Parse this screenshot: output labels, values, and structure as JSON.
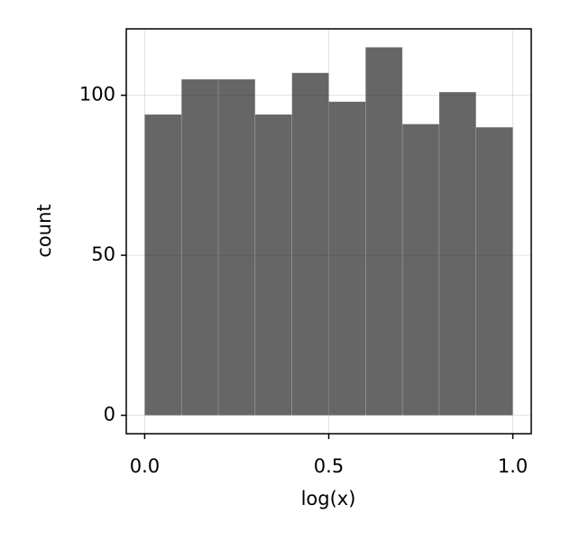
{
  "chart_data": {
    "type": "histogram",
    "xlabel": "log(x)",
    "ylabel": "count",
    "bins": [
      0.0,
      0.1,
      0.2,
      0.3,
      0.4,
      0.5,
      0.6,
      0.7,
      0.8,
      0.9,
      1.0
    ],
    "values": [
      94,
      105,
      105,
      94,
      107,
      98,
      115,
      91,
      101,
      90
    ],
    "color": "rgba(0,0,0,0.6)",
    "xlim": [
      -0.05,
      1.05
    ],
    "ylim": [
      -5.75,
      120.75
    ],
    "xticks": [
      {
        "value": 0,
        "label": "0.0"
      },
      0.5,
      {
        "value": 1,
        "label": "1.0"
      }
    ],
    "yticks": [
      0,
      50,
      100
    ],
    "grid": true
  }
}
